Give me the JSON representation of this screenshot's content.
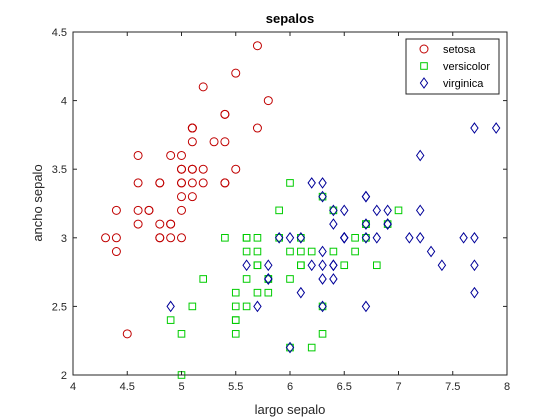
{
  "chart_data": {
    "type": "scatter",
    "title": "sepalos",
    "xlabel": "largo sepalo",
    "ylabel": "ancho sepalo",
    "xlim": [
      4,
      8
    ],
    "ylim": [
      2,
      4.5
    ],
    "xticks": [
      "4",
      "4.5",
      "5",
      "5.5",
      "6",
      "6.5",
      "7",
      "7.5",
      "8"
    ],
    "yticks": [
      "2",
      "2.5",
      "3",
      "3.5",
      "4",
      "4.5"
    ],
    "grid": false,
    "legend_position": "top-right",
    "series": [
      {
        "name": "setosa",
        "marker": "circle",
        "color": "#c00000",
        "x": [
          5.1,
          4.9,
          4.7,
          4.6,
          5.0,
          5.4,
          4.6,
          5.0,
          4.4,
          4.9,
          5.4,
          4.8,
          4.8,
          4.3,
          5.8,
          5.7,
          5.4,
          5.1,
          5.7,
          5.1,
          5.4,
          5.1,
          4.6,
          5.1,
          4.8,
          5.0,
          5.0,
          5.2,
          5.2,
          4.7,
          4.8,
          5.4,
          5.2,
          5.5,
          4.9,
          5.0,
          5.5,
          4.9,
          4.4,
          5.1,
          5.0,
          4.5,
          4.4,
          5.0,
          5.1,
          4.8,
          5.1,
          4.6,
          5.3,
          5.0
        ],
        "y": [
          3.5,
          3.0,
          3.2,
          3.1,
          3.6,
          3.9,
          3.4,
          3.4,
          2.9,
          3.1,
          3.7,
          3.4,
          3.0,
          3.0,
          4.0,
          4.4,
          3.9,
          3.5,
          3.8,
          3.8,
          3.4,
          3.7,
          3.6,
          3.3,
          3.4,
          3.0,
          3.4,
          3.5,
          3.4,
          3.2,
          3.1,
          3.4,
          4.1,
          4.2,
          3.1,
          3.2,
          3.5,
          3.6,
          3.0,
          3.4,
          3.5,
          2.3,
          3.2,
          3.5,
          3.8,
          3.0,
          3.8,
          3.2,
          3.7,
          3.3
        ]
      },
      {
        "name": "versicolor",
        "marker": "square",
        "color": "#00cc00",
        "x": [
          7.0,
          6.4,
          6.9,
          5.5,
          6.5,
          5.7,
          6.3,
          4.9,
          6.6,
          5.2,
          5.0,
          5.9,
          6.0,
          6.1,
          5.6,
          6.7,
          5.6,
          5.8,
          6.2,
          5.6,
          5.9,
          6.1,
          6.3,
          6.1,
          6.4,
          6.6,
          6.8,
          6.7,
          6.0,
          5.7,
          5.5,
          5.5,
          5.8,
          6.0,
          5.4,
          6.0,
          6.7,
          6.3,
          5.6,
          5.5,
          5.5,
          6.1,
          5.8,
          5.0,
          5.6,
          5.7,
          5.7,
          6.2,
          5.1,
          5.7
        ],
        "y": [
          3.2,
          3.2,
          3.1,
          2.3,
          2.8,
          2.8,
          3.3,
          2.4,
          2.9,
          2.7,
          2.0,
          3.0,
          2.2,
          2.9,
          2.9,
          3.1,
          3.0,
          2.7,
          2.2,
          2.5,
          3.2,
          2.8,
          2.5,
          2.8,
          2.9,
          3.0,
          2.8,
          3.0,
          2.9,
          2.6,
          2.4,
          2.4,
          2.7,
          2.7,
          3.0,
          3.4,
          3.1,
          2.3,
          3.0,
          2.5,
          2.6,
          3.0,
          2.6,
          2.3,
          2.7,
          3.0,
          2.9,
          2.9,
          2.5,
          2.8
        ]
      },
      {
        "name": "virginica",
        "marker": "diamond",
        "color": "#000099",
        "x": [
          6.3,
          5.8,
          7.1,
          6.3,
          6.5,
          7.6,
          4.9,
          7.3,
          6.7,
          7.2,
          6.5,
          6.4,
          6.8,
          5.7,
          5.8,
          6.4,
          6.5,
          7.7,
          7.7,
          6.0,
          6.9,
          5.6,
          7.7,
          6.3,
          6.7,
          7.2,
          6.2,
          6.1,
          6.4,
          7.2,
          7.4,
          7.9,
          6.4,
          6.3,
          6.1,
          7.7,
          6.3,
          6.4,
          6.0,
          6.9,
          6.7,
          6.9,
          5.8,
          6.8,
          6.7,
          6.7,
          6.3,
          6.5,
          6.2,
          5.9
        ],
        "y": [
          3.3,
          2.7,
          3.0,
          2.9,
          3.0,
          3.0,
          2.5,
          2.9,
          2.5,
          3.6,
          3.2,
          2.7,
          3.0,
          2.5,
          2.8,
          3.2,
          3.0,
          3.8,
          2.6,
          2.2,
          3.2,
          2.8,
          2.8,
          2.7,
          3.3,
          3.2,
          2.8,
          3.0,
          2.8,
          3.0,
          2.8,
          3.8,
          2.8,
          2.8,
          2.6,
          3.0,
          3.4,
          3.1,
          3.0,
          3.1,
          3.1,
          3.1,
          2.7,
          3.2,
          3.3,
          3.0,
          2.5,
          3.0,
          3.4,
          3.0
        ]
      }
    ]
  }
}
